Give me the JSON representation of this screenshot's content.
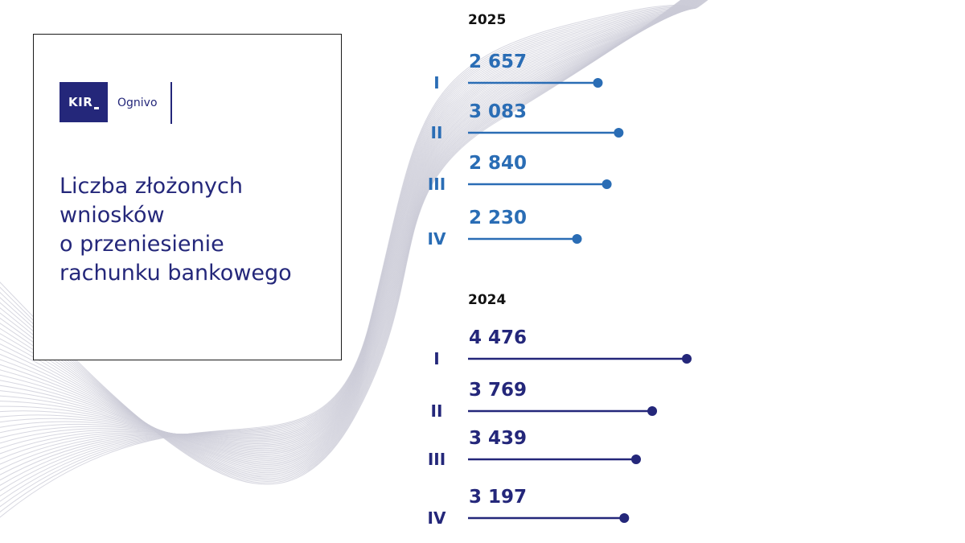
{
  "logo": {
    "brand": "KIR",
    "product": "Ognivo"
  },
  "title_lines": [
    "Liczba złożonych",
    "wniosków",
    "o przeniesienie",
    "rachunku bankowego"
  ],
  "colors": {
    "series_2025": "#2a6db5",
    "series_2024": "#24277a",
    "title": "#24277a"
  },
  "chart_data": [
    {
      "type": "bar",
      "orientation": "horizontal",
      "style": "lollipop",
      "title": "2025",
      "categories": [
        "I",
        "II",
        "III",
        "IV"
      ],
      "values": [
        2657,
        3083,
        2840,
        2230
      ],
      "value_labels": [
        "2 657",
        "3 083",
        "2 840",
        "2 230"
      ],
      "color": "#2a6db5"
    },
    {
      "type": "bar",
      "orientation": "horizontal",
      "style": "lollipop",
      "title": "2024",
      "categories": [
        "I",
        "II",
        "III",
        "IV"
      ],
      "values": [
        4476,
        3769,
        3439,
        3197
      ],
      "value_labels": [
        "4 476",
        "3 769",
        "3 439",
        "3 197"
      ],
      "color": "#24277a"
    }
  ]
}
